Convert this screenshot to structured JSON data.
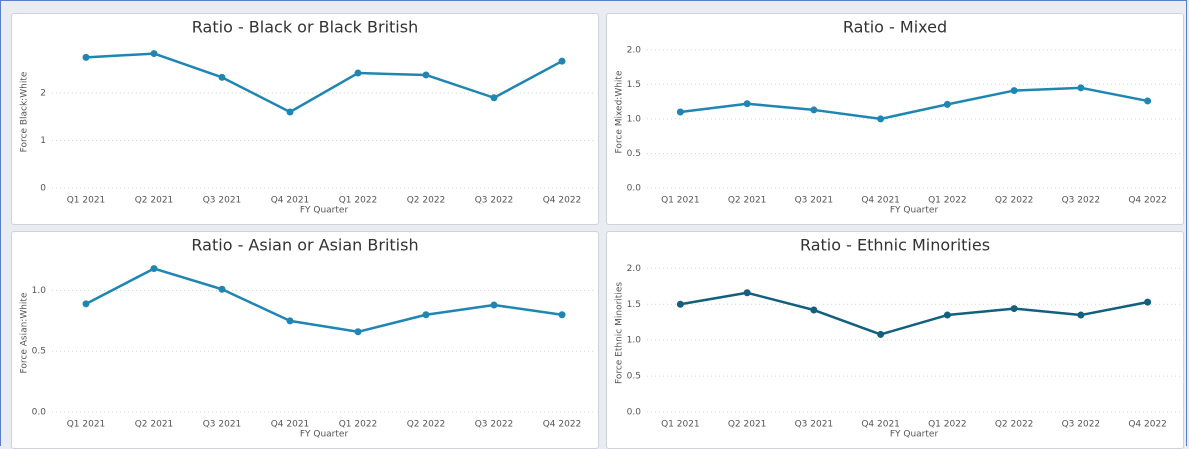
{
  "chart_data": [
    {
      "type": "line",
      "title": "Ratio - Black or Black British",
      "y_label": "Force Black:White",
      "x_label": "FY Quarter",
      "categories": [
        "Q1 2021",
        "Q2 2021",
        "Q3 2021",
        "Q4 2021",
        "Q1 2022",
        "Q2 2022",
        "Q3 2022",
        "Q4 2022"
      ],
      "series": [
        {
          "name": "Force Black:White",
          "color": "#1f86b3",
          "values": [
            2.75,
            2.83,
            2.33,
            1.6,
            2.42,
            2.38,
            1.9,
            2.67
          ]
        }
      ],
      "ylim": [
        0,
        3.2
      ],
      "yticks": [
        0,
        1,
        2
      ],
      "grid": true
    },
    {
      "type": "line",
      "title": "Ratio - Mixed",
      "y_label": "Force Mixed:White",
      "x_label": "FY Quarter",
      "categories": [
        "Q1 2021",
        "Q2 2021",
        "Q3 2021",
        "Q4 2021",
        "Q1 2022",
        "Q2 2022",
        "Q3 2022",
        "Q4 2022"
      ],
      "series": [
        {
          "name": "Force Mixed:White",
          "color": "#1f86b3",
          "values": [
            1.1,
            1.22,
            1.13,
            1.0,
            1.21,
            1.41,
            1.45,
            1.26
          ]
        }
      ],
      "ylim": [
        0,
        2.2
      ],
      "yticks": [
        {
          "value": 0,
          "label": "0.0"
        },
        0.5,
        {
          "value": 1,
          "label": "1.0"
        },
        1.5,
        {
          "value": 2,
          "label": "2.0"
        }
      ],
      "grid": true
    },
    {
      "type": "line",
      "title": "Ratio - Asian or Asian British",
      "y_label": "Force Asian:White",
      "x_label": "FY Quarter",
      "categories": [
        "Q1 2021",
        "Q2 2021",
        "Q3 2021",
        "Q4 2021",
        "Q1 2022",
        "Q2 2022",
        "Q3 2022",
        "Q4 2022"
      ],
      "series": [
        {
          "name": "Force Asian:White",
          "color": "#1f86b3",
          "values": [
            0.89,
            1.18,
            1.01,
            0.75,
            0.66,
            0.8,
            0.88,
            0.8
          ]
        }
      ],
      "ylim": [
        0,
        1.3
      ],
      "yticks": [
        {
          "value": 0,
          "label": "0.0"
        },
        0.5,
        {
          "value": 1,
          "label": "1.0"
        }
      ],
      "grid": true
    },
    {
      "type": "line",
      "title": "Ratio - Ethnic Minorities",
      "y_label": "Force Ethnic Minorities",
      "x_label": "FY Quarter",
      "categories": [
        "Q1 2021",
        "Q2 2021",
        "Q3 2021",
        "Q4 2021",
        "Q1 2022",
        "Q2 2022",
        "Q3 2022",
        "Q4 2022"
      ],
      "series": [
        {
          "name": "Force Ethnic Minorities",
          "color": "#135f7e",
          "values": [
            1.5,
            1.66,
            1.42,
            1.08,
            1.35,
            1.44,
            1.35,
            1.53
          ]
        }
      ],
      "ylim": [
        0,
        2.2
      ],
      "yticks": [
        {
          "value": 0,
          "label": "0.0"
        },
        0.5,
        {
          "value": 1,
          "label": "1.0"
        },
        1.5,
        {
          "value": 2,
          "label": "2.0"
        }
      ],
      "grid": true
    }
  ]
}
